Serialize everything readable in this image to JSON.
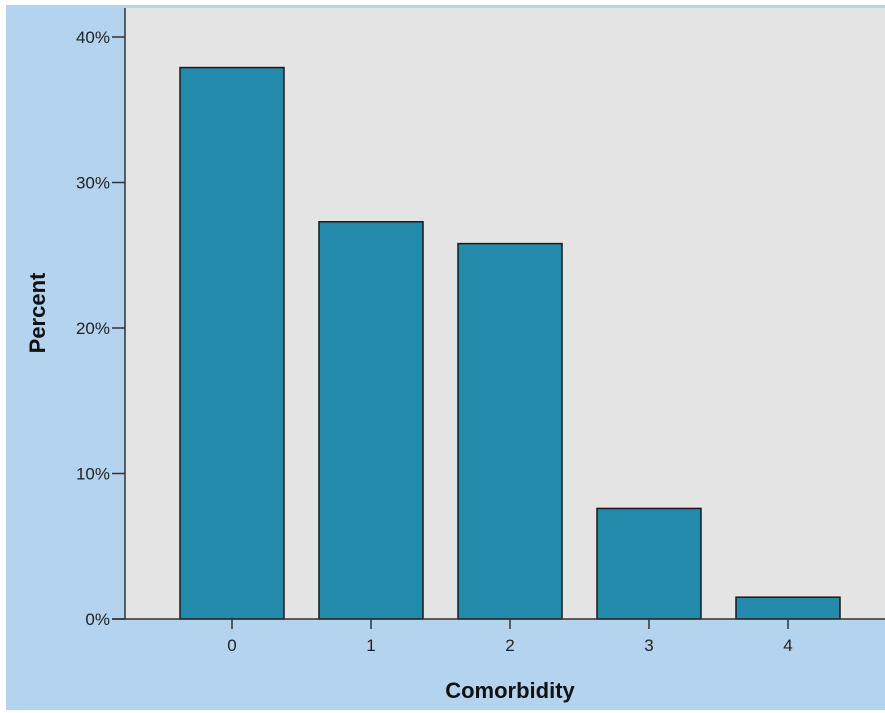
{
  "chart_data": {
    "type": "bar",
    "title": "",
    "xlabel": "Comorbidity",
    "ylabel": "Percent",
    "categories": [
      "0",
      "1",
      "2",
      "3",
      "4"
    ],
    "values": [
      37.9,
      27.3,
      25.8,
      7.6,
      1.5
    ],
    "ylim": [
      0,
      40
    ],
    "yticks": [
      0,
      10,
      20,
      30,
      40
    ],
    "ytick_labels": [
      "0%",
      "10%",
      "20%",
      "30%",
      "40%"
    ],
    "grid": false,
    "legend": "none",
    "colors": {
      "bar_fill": "#248aab",
      "bar_stroke": "#1a1a1a",
      "plot_background": "#e4e4e4",
      "frame_background": "#b3d3ee"
    }
  }
}
